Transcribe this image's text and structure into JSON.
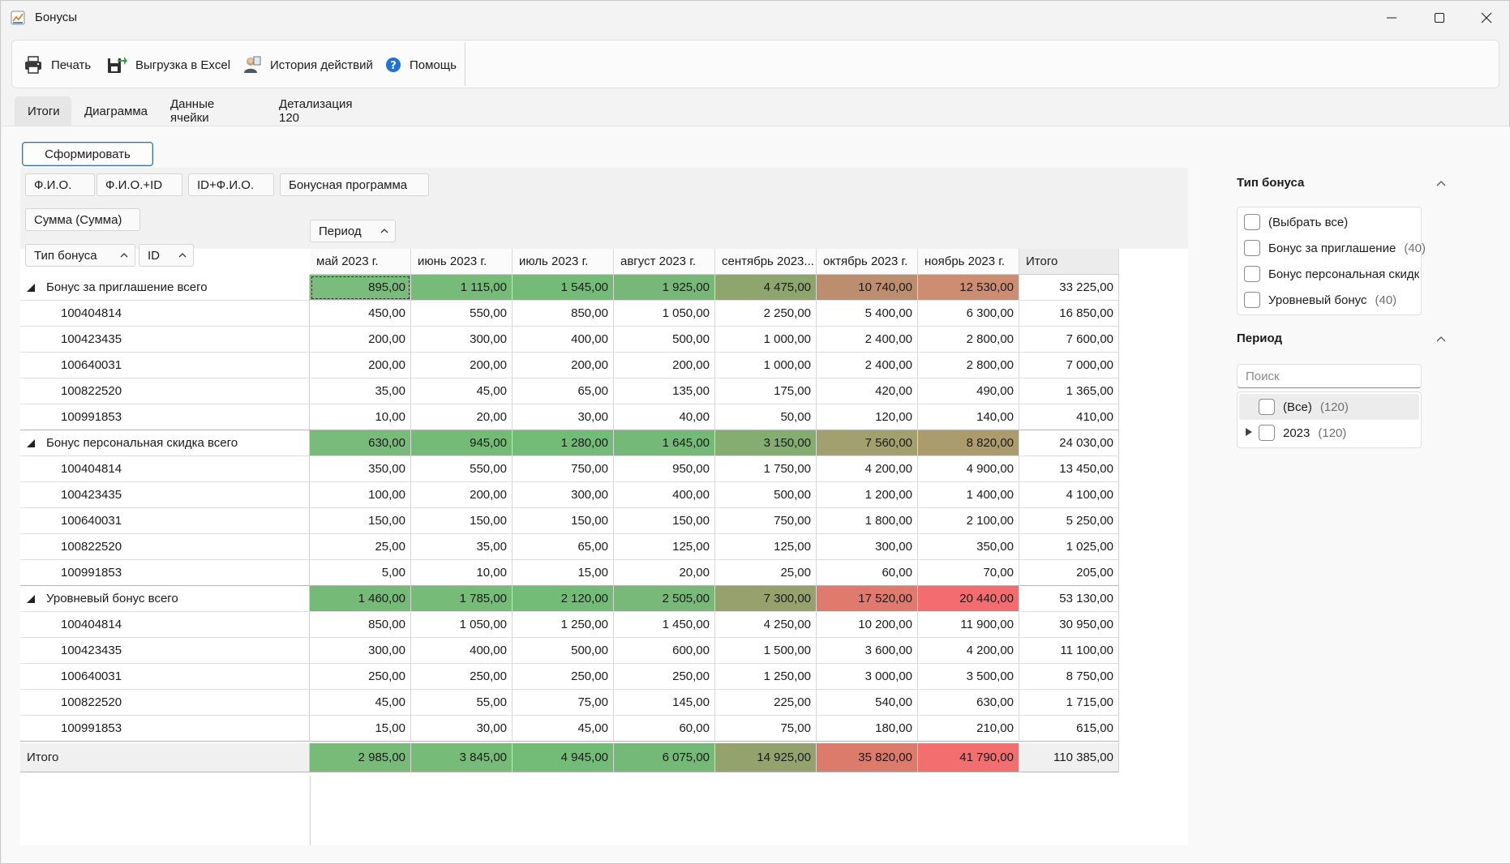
{
  "window": {
    "title": "Бонусы"
  },
  "toolbar": {
    "print": "Печать",
    "excel": "Выгрузка в Excel",
    "history": "История действий",
    "help": "Помощь"
  },
  "tabs": [
    {
      "label": "Итоги",
      "active": true
    },
    {
      "label": "Диаграмма"
    },
    {
      "label": "Данные ячейки"
    },
    {
      "label": "Детализация 120"
    }
  ],
  "build_button": "Сформировать",
  "filter_fields": [
    "Ф.И.О.",
    "Ф.И.О.+ID",
    "ID+Ф.И.О.",
    "Бонусная программа"
  ],
  "data_field": "Сумма (Сумма)",
  "column_field": "Период",
  "row_fields": [
    "Тип бонуса",
    "ID"
  ],
  "columns": [
    "май 2023 г.",
    "июнь 2023 г.",
    "июль 2023 г.",
    "август 2023 г.",
    "сентябрь 2023...",
    "октябрь 2023 г.",
    "ноябрь 2023 г.",
    "Итого"
  ],
  "colors": {
    "heat": [
      "#79bc7c",
      "#77bb79",
      "#75bb78",
      "#77b878",
      "#8ea66e",
      "#bc8d6e",
      "#cd8d73"
    ],
    "heat2": [
      "#78bb7a",
      "#74bb77",
      "#73bc77",
      "#74b978",
      "#85ad72",
      "#a2a06e",
      "#ac9b6c"
    ],
    "heat3": [
      "#75bb77",
      "#76bb78",
      "#73bc77",
      "#78b879",
      "#97a16d",
      "#e07a6e",
      "#f36c70"
    ],
    "heatT": [
      "#78bb79",
      "#76bb78",
      "#73bc77",
      "#74b978",
      "#94a26e",
      "#dc7a6c",
      "#f26e6f"
    ]
  },
  "groups": [
    {
      "label": "Бонус за приглашение всего",
      "values": [
        "895,00",
        "1 115,00",
        "1 545,00",
        "1 925,00",
        "4 475,00",
        "10 740,00",
        "12 530,00",
        "33 225,00"
      ],
      "rows": [
        {
          "id": "100404814",
          "values": [
            "450,00",
            "550,00",
            "850,00",
            "1 050,00",
            "2 250,00",
            "5 400,00",
            "6 300,00",
            "16 850,00"
          ]
        },
        {
          "id": "100423435",
          "values": [
            "200,00",
            "300,00",
            "400,00",
            "500,00",
            "1 000,00",
            "2 400,00",
            "2 800,00",
            "7 600,00"
          ]
        },
        {
          "id": "100640031",
          "values": [
            "200,00",
            "200,00",
            "200,00",
            "200,00",
            "1 000,00",
            "2 400,00",
            "2 800,00",
            "7 000,00"
          ]
        },
        {
          "id": "100822520",
          "values": [
            "35,00",
            "45,00",
            "65,00",
            "135,00",
            "175,00",
            "420,00",
            "490,00",
            "1 365,00"
          ]
        },
        {
          "id": "100991853",
          "values": [
            "10,00",
            "20,00",
            "30,00",
            "40,00",
            "50,00",
            "120,00",
            "140,00",
            "410,00"
          ]
        }
      ]
    },
    {
      "label": "Бонус персональная скидка всего",
      "values": [
        "630,00",
        "945,00",
        "1 280,00",
        "1 645,00",
        "3 150,00",
        "7 560,00",
        "8 820,00",
        "24 030,00"
      ],
      "rows": [
        {
          "id": "100404814",
          "values": [
            "350,00",
            "550,00",
            "750,00",
            "950,00",
            "1 750,00",
            "4 200,00",
            "4 900,00",
            "13 450,00"
          ]
        },
        {
          "id": "100423435",
          "values": [
            "100,00",
            "200,00",
            "300,00",
            "400,00",
            "500,00",
            "1 200,00",
            "1 400,00",
            "4 100,00"
          ]
        },
        {
          "id": "100640031",
          "values": [
            "150,00",
            "150,00",
            "150,00",
            "150,00",
            "750,00",
            "1 800,00",
            "2 100,00",
            "5 250,00"
          ]
        },
        {
          "id": "100822520",
          "values": [
            "25,00",
            "35,00",
            "65,00",
            "125,00",
            "125,00",
            "300,00",
            "350,00",
            "1 025,00"
          ]
        },
        {
          "id": "100991853",
          "values": [
            "5,00",
            "10,00",
            "15,00",
            "20,00",
            "25,00",
            "60,00",
            "70,00",
            "205,00"
          ]
        }
      ]
    },
    {
      "label": "Уровневый бонус всего",
      "values": [
        "1 460,00",
        "1 785,00",
        "2 120,00",
        "2 505,00",
        "7 300,00",
        "17 520,00",
        "20 440,00",
        "53 130,00"
      ],
      "rows": [
        {
          "id": "100404814",
          "values": [
            "850,00",
            "1 050,00",
            "1 250,00",
            "1 450,00",
            "4 250,00",
            "10 200,00",
            "11 900,00",
            "30 950,00"
          ]
        },
        {
          "id": "100423435",
          "values": [
            "300,00",
            "400,00",
            "500,00",
            "600,00",
            "1 500,00",
            "3 600,00",
            "4 200,00",
            "11 100,00"
          ]
        },
        {
          "id": "100640031",
          "values": [
            "250,00",
            "250,00",
            "250,00",
            "250,00",
            "1 250,00",
            "3 000,00",
            "3 500,00",
            "8 750,00"
          ]
        },
        {
          "id": "100822520",
          "values": [
            "45,00",
            "55,00",
            "75,00",
            "145,00",
            "225,00",
            "540,00",
            "630,00",
            "1 715,00"
          ]
        },
        {
          "id": "100991853",
          "values": [
            "15,00",
            "30,00",
            "45,00",
            "60,00",
            "75,00",
            "180,00",
            "210,00",
            "615,00"
          ]
        }
      ]
    }
  ],
  "grand_total": {
    "label": "Итого",
    "values": [
      "2 985,00",
      "3 845,00",
      "4 945,00",
      "6 075,00",
      "14 925,00",
      "35 820,00",
      "41 790,00",
      "110 385,00"
    ]
  },
  "side": {
    "bonus_type": {
      "title": "Тип бонуса",
      "items": [
        {
          "label": "(Выбрать все)",
          "count": ""
        },
        {
          "label": "Бонус за приглашение",
          "count": "(40)"
        },
        {
          "label": "Бонус персональная скидк",
          "count": ""
        },
        {
          "label": "Уровневый бонус",
          "count": "(40)"
        }
      ]
    },
    "period": {
      "title": "Период",
      "search_placeholder": "Поиск",
      "items": [
        {
          "label": "(Все)",
          "count": "(120)"
        },
        {
          "label": "2023",
          "count": "(120)"
        }
      ]
    }
  }
}
